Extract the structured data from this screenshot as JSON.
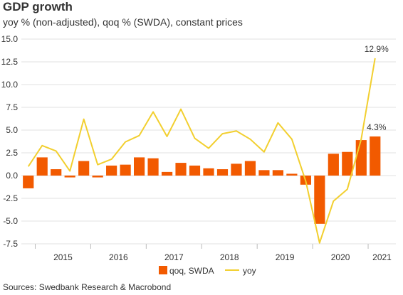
{
  "chart_data": {
    "type": "bar+line",
    "title": "GDP growth",
    "subtitle": "yoy % (non-adjusted), qoq % (SWDA), constant prices",
    "source": "Sources: Swedbank Research & Macrobond",
    "quarters": [
      "2014Q4",
      "2015Q1",
      "2015Q2",
      "2015Q3",
      "2015Q4",
      "2016Q1",
      "2016Q2",
      "2016Q3",
      "2016Q4",
      "2017Q1",
      "2017Q2",
      "2017Q3",
      "2017Q4",
      "2018Q1",
      "2018Q2",
      "2018Q3",
      "2018Q4",
      "2019Q1",
      "2019Q2",
      "2019Q3",
      "2019Q4",
      "2020Q1",
      "2020Q2",
      "2020Q3",
      "2020Q4",
      "2021Q1",
      "2021Q2"
    ],
    "year_labels": [
      "2015",
      "2016",
      "2017",
      "2018",
      "2019",
      "2020",
      "2021"
    ],
    "y_ticks": [
      "15.0",
      "12.5",
      "10.0",
      "7.5",
      "5.0",
      "2.5",
      "0.0",
      "-2.5",
      "-5.0",
      "-7.5"
    ],
    "ylim": [
      -7.5,
      15.0
    ],
    "grid": "horizontal",
    "legend_position": "bottom",
    "series": [
      {
        "name": "qoq, SWDA",
        "kind": "bar",
        "color": "#f25a00",
        "values": [
          -1.4,
          2.0,
          0.7,
          -0.2,
          1.6,
          -0.2,
          1.1,
          1.2,
          2.0,
          1.9,
          0.4,
          1.4,
          1.1,
          0.8,
          0.7,
          1.3,
          1.6,
          0.6,
          0.6,
          0.2,
          -1.0,
          -5.3,
          2.4,
          2.6,
          3.9,
          4.3,
          null
        ]
      },
      {
        "name": "yoy",
        "kind": "line",
        "color": "#f2cf2f",
        "values": [
          1.0,
          3.3,
          2.7,
          0.5,
          6.2,
          1.2,
          1.8,
          3.7,
          4.4,
          7.0,
          4.3,
          7.3,
          4.1,
          3.0,
          4.6,
          4.9,
          4.0,
          2.6,
          5.8,
          4.0,
          -0.6,
          -7.4,
          -2.8,
          -1.5,
          4.0,
          12.9,
          null
        ]
      }
    ],
    "annotations": [
      {
        "text": "12.9%",
        "series": "yoy",
        "quarter": "2021Q1"
      },
      {
        "text": "4.3%",
        "series": "qoq, SWDA",
        "quarter": "2021Q1"
      }
    ]
  }
}
